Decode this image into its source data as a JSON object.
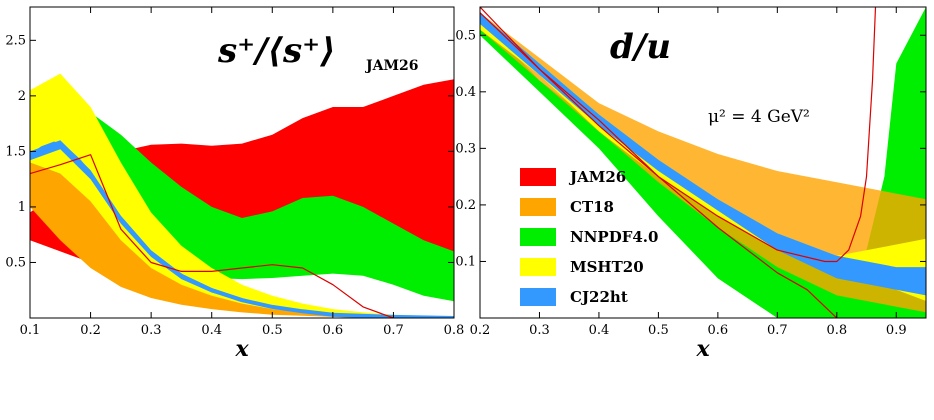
{
  "colors": {
    "JAM26": "#ff0000",
    "CT18": "#ffa500",
    "NNPDF4.0": "#00ee00",
    "MSHT20": "#ffff00",
    "CJ22ht": "#3399ff"
  },
  "chart_data": [
    {
      "type": "area",
      "title_main": "s⁺/⟨s⁺⟩",
      "title_sub": "JAM26",
      "xlabel": "x",
      "ylabel": "",
      "xlim": [
        0.1,
        0.8
      ],
      "ylim": [
        0.0,
        2.8
      ],
      "xticks": [
        "0.1",
        "0.2",
        "0.3",
        "0.4",
        "0.5",
        "0.6",
        "0.7",
        "0.8"
      ],
      "yticks": [
        "0.5",
        "1",
        "1.5",
        "2",
        "2.5"
      ],
      "series": [
        {
          "name": "JAM26",
          "kind": "band",
          "x": [
            0.1,
            0.15,
            0.2,
            0.25,
            0.3,
            0.35,
            0.4,
            0.45,
            0.5,
            0.55,
            0.6,
            0.65,
            0.7,
            0.75,
            0.8
          ],
          "lower": [
            0.7,
            0.6,
            0.5,
            0.45,
            0.42,
            0.4,
            0.4,
            0.42,
            0.45,
            0.5,
            0.55,
            0.6,
            0.65,
            0.6,
            0.55
          ],
          "upper": [
            0.95,
            1.15,
            1.35,
            1.5,
            1.56,
            1.57,
            1.55,
            1.57,
            1.65,
            1.8,
            1.9,
            1.9,
            2.0,
            2.1,
            2.15
          ]
        },
        {
          "name": "CT18",
          "kind": "band",
          "x": [
            0.1,
            0.15,
            0.2,
            0.25,
            0.3,
            0.35,
            0.4,
            0.45,
            0.5,
            0.55,
            0.6,
            0.65,
            0.7,
            0.75,
            0.8
          ],
          "lower": [
            1.0,
            0.7,
            0.45,
            0.28,
            0.18,
            0.12,
            0.08,
            0.05,
            0.03,
            0.02,
            0.01,
            0.0,
            0.0,
            0.0,
            0.0
          ],
          "upper": [
            1.95,
            2.05,
            1.85,
            1.3,
            0.85,
            0.55,
            0.35,
            0.22,
            0.13,
            0.08,
            0.05,
            0.03,
            0.02,
            0.01,
            0.0
          ]
        },
        {
          "name": "NNPDF4.0",
          "kind": "band",
          "x": [
            0.1,
            0.15,
            0.2,
            0.25,
            0.3,
            0.35,
            0.4,
            0.45,
            0.5,
            0.55,
            0.6,
            0.65,
            0.7,
            0.75,
            0.8
          ],
          "lower": [
            1.4,
            1.3,
            1.1,
            0.8,
            0.55,
            0.42,
            0.36,
            0.35,
            0.36,
            0.38,
            0.4,
            0.38,
            0.3,
            0.2,
            0.15
          ],
          "upper": [
            1.85,
            1.95,
            1.85,
            1.65,
            1.4,
            1.18,
            1.0,
            0.9,
            0.96,
            1.08,
            1.1,
            1.0,
            0.85,
            0.7,
            0.6
          ]
        },
        {
          "name": "MSHT20",
          "kind": "band",
          "x": [
            0.1,
            0.15,
            0.2,
            0.25,
            0.3,
            0.35,
            0.4,
            0.45,
            0.5,
            0.55,
            0.6,
            0.65,
            0.7,
            0.75,
            0.8
          ],
          "lower": [
            1.4,
            1.3,
            1.05,
            0.7,
            0.45,
            0.3,
            0.2,
            0.13,
            0.08,
            0.05,
            0.03,
            0.02,
            0.01,
            0.0,
            0.0
          ],
          "upper": [
            2.05,
            2.2,
            1.9,
            1.4,
            0.95,
            0.65,
            0.45,
            0.3,
            0.2,
            0.13,
            0.08,
            0.05,
            0.03,
            0.02,
            0.01
          ]
        },
        {
          "name": "CJ22ht",
          "kind": "band",
          "x": [
            0.1,
            0.15,
            0.2,
            0.25,
            0.3,
            0.35,
            0.4,
            0.45,
            0.5,
            0.55,
            0.6,
            0.65,
            0.7,
            0.75,
            0.8
          ],
          "lower": [
            1.42,
            1.52,
            1.25,
            0.85,
            0.55,
            0.35,
            0.23,
            0.15,
            0.09,
            0.06,
            0.03,
            0.02,
            0.01,
            0.0,
            0.0
          ],
          "upper": [
            1.5,
            1.6,
            1.33,
            0.92,
            0.61,
            0.4,
            0.27,
            0.18,
            0.11,
            0.07,
            0.04,
            0.02,
            0.01,
            0.0,
            0.0
          ]
        },
        {
          "name": "CJ22ht",
          "kind": "line",
          "x": [
            0.1,
            0.12,
            0.14,
            0.16,
            0.18,
            0.2,
            0.25,
            0.3,
            0.35,
            0.4,
            0.45,
            0.5,
            0.55,
            0.6,
            0.7,
            0.8
          ],
          "y": [
            1.45,
            1.53,
            1.57,
            1.52,
            1.42,
            1.29,
            0.88,
            0.58,
            0.38,
            0.25,
            0.16,
            0.1,
            0.06,
            0.03,
            0.01,
            0.0
          ]
        },
        {
          "name": "JAM26",
          "kind": "line",
          "x": [
            0.1,
            0.15,
            0.2,
            0.25,
            0.3,
            0.35,
            0.4,
            0.45,
            0.5,
            0.55,
            0.6,
            0.65,
            0.7
          ],
          "y": [
            1.3,
            1.38,
            1.47,
            0.8,
            0.5,
            0.42,
            0.42,
            0.45,
            0.48,
            0.45,
            0.3,
            0.1,
            0.0
          ]
        }
      ]
    },
    {
      "type": "area",
      "title_main": "d/u",
      "annotation": "μ² = 4 GeV²",
      "xlabel": "x",
      "ylabel": "",
      "xlim": [
        0.2,
        0.95
      ],
      "ylim": [
        0.0,
        0.55
      ],
      "xticks": [
        "0.2",
        "0.3",
        "0.4",
        "0.5",
        "0.6",
        "0.7",
        "0.8",
        "0.9"
      ],
      "yticks": [
        "0.1",
        "0.2",
        "0.3",
        "0.4",
        "0.5"
      ],
      "legend": [
        "JAM26",
        "CT18",
        "NNPDF4.0",
        "MSHT20",
        "CJ22ht"
      ],
      "series": [
        {
          "name": "NNPDF4.0",
          "kind": "band",
          "x": [
            0.2,
            0.3,
            0.4,
            0.5,
            0.6,
            0.7,
            0.8,
            0.85,
            0.88,
            0.9,
            0.95
          ],
          "lower": [
            0.5,
            0.4,
            0.3,
            0.18,
            0.07,
            0.0,
            0.0,
            0.0,
            0.0,
            0.0,
            0.0
          ],
          "upper": [
            0.53,
            0.42,
            0.34,
            0.25,
            0.19,
            0.14,
            0.1,
            0.12,
            0.25,
            0.45,
            0.55
          ]
        },
        {
          "name": "CT18",
          "kind": "band",
          "x": [
            0.2,
            0.3,
            0.4,
            0.5,
            0.6,
            0.7,
            0.8,
            0.9,
            0.95
          ],
          "lower": [
            0.51,
            0.42,
            0.33,
            0.24,
            0.16,
            0.09,
            0.04,
            0.02,
            0.01
          ],
          "upper": [
            0.54,
            0.46,
            0.38,
            0.33,
            0.29,
            0.26,
            0.24,
            0.22,
            0.21
          ]
        },
        {
          "name": "MSHT20",
          "kind": "band",
          "x": [
            0.2,
            0.3,
            0.4,
            0.5,
            0.6,
            0.7,
            0.8,
            0.9,
            0.95
          ],
          "lower": [
            0.51,
            0.43,
            0.33,
            0.25,
            0.18,
            0.12,
            0.09,
            0.05,
            0.03
          ],
          "upper": [
            0.54,
            0.45,
            0.36,
            0.28,
            0.21,
            0.15,
            0.11,
            0.13,
            0.14
          ]
        },
        {
          "name": "CJ22ht",
          "kind": "band",
          "x": [
            0.2,
            0.3,
            0.4,
            0.5,
            0.6,
            0.7,
            0.8,
            0.9,
            0.95
          ],
          "lower": [
            0.52,
            0.43,
            0.34,
            0.26,
            0.19,
            0.12,
            0.07,
            0.05,
            0.04
          ],
          "upper": [
            0.54,
            0.45,
            0.36,
            0.28,
            0.21,
            0.15,
            0.11,
            0.09,
            0.09
          ]
        },
        {
          "name": "JAM26",
          "kind": "line",
          "x": [
            0.2,
            0.3,
            0.4,
            0.5,
            0.6,
            0.7,
            0.75,
            0.78,
            0.8
          ],
          "y": [
            0.54,
            0.44,
            0.35,
            0.25,
            0.16,
            0.08,
            0.05,
            0.02,
            0.0
          ]
        },
        {
          "name": "JAM26",
          "kind": "line",
          "x": [
            0.2,
            0.3,
            0.4,
            0.5,
            0.6,
            0.7,
            0.78,
            0.8,
            0.82,
            0.84,
            0.85,
            0.86,
            0.865
          ],
          "y": [
            0.55,
            0.44,
            0.34,
            0.25,
            0.18,
            0.12,
            0.1,
            0.1,
            0.12,
            0.18,
            0.25,
            0.42,
            0.55
          ]
        }
      ]
    }
  ]
}
